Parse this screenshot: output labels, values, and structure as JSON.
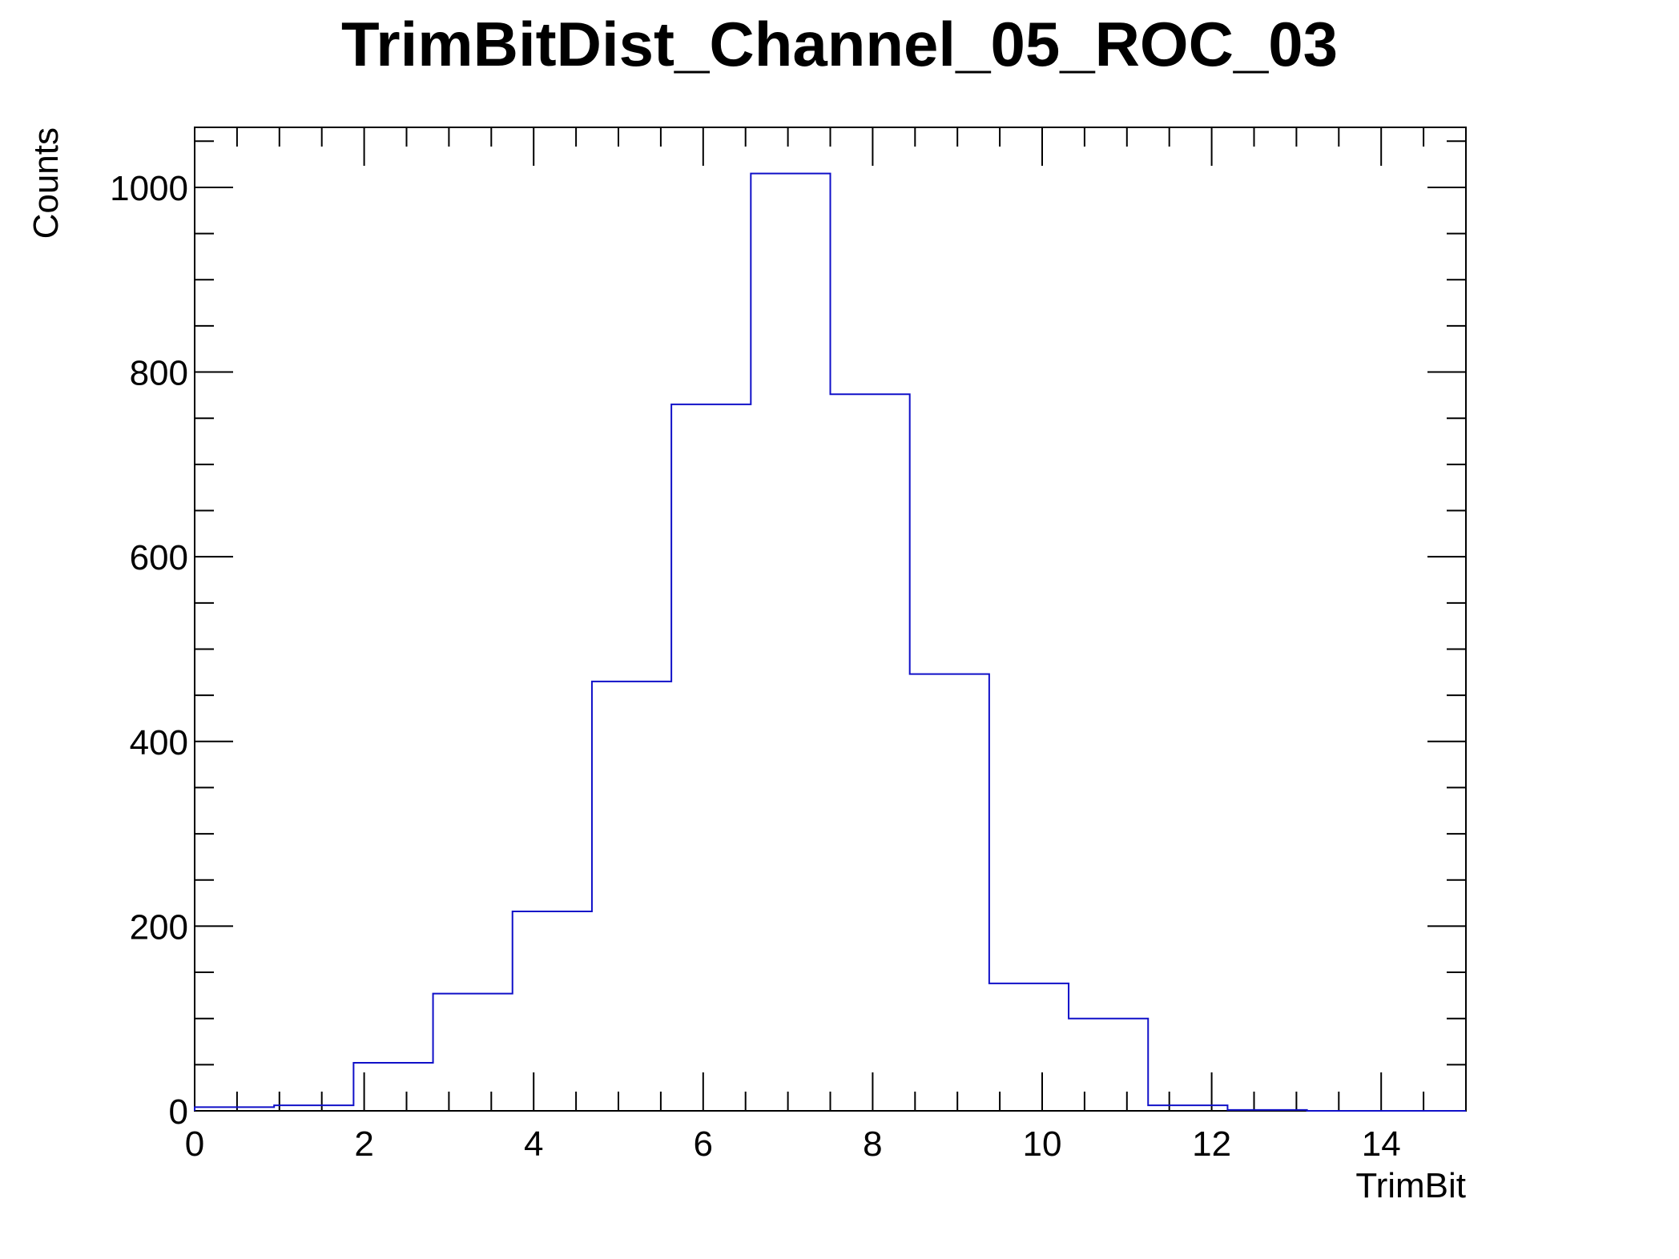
{
  "chart_data": {
    "type": "bar",
    "title": "TrimBitDist_Channel_05_ROC_03",
    "xlabel": "TrimBit",
    "ylabel": "Counts",
    "x_range": [
      0,
      15
    ],
    "ylim": [
      0,
      1065
    ],
    "bin_edges": [
      0,
      0.9375,
      1.875,
      2.8125,
      3.75,
      4.6875,
      5.625,
      6.5625,
      7.5,
      8.4375,
      9.375,
      10.3125,
      11.25,
      12.1875,
      13.125,
      14.0625,
      15
    ],
    "values": [
      4,
      6,
      52,
      127,
      216,
      465,
      765,
      1015,
      776,
      473,
      138,
      100,
      6,
      1,
      0,
      0
    ],
    "x_ticks": [
      0,
      2,
      4,
      6,
      8,
      10,
      12,
      14
    ],
    "x_tick_labels": [
      "0",
      "2",
      "4",
      "6",
      "8",
      "10",
      "12",
      "14"
    ],
    "y_ticks": [
      0,
      200,
      400,
      600,
      800,
      1000
    ],
    "y_tick_labels": [
      "0",
      "200",
      "400",
      "600",
      "800",
      "1000"
    ],
    "line_color": "#1010c8",
    "axis_color": "#000000",
    "grid": false,
    "legend": "none"
  }
}
